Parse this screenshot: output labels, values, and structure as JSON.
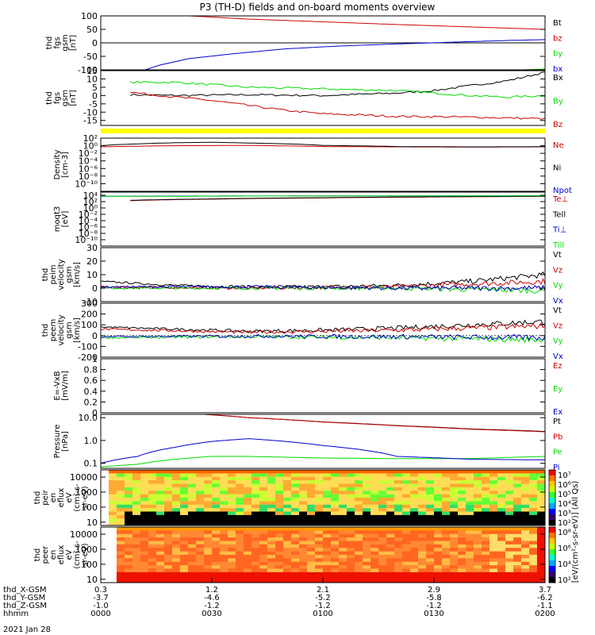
{
  "title": "P3 (TH-D) fields and on-board moments overview",
  "colors": {
    "black": "#000000",
    "red": "#cc0000",
    "green": "#00dd00",
    "blue": "#0000cc",
    "yellow": "#ffff00"
  },
  "chart_data": [
    {
      "type": "line",
      "ylabel": [
        "thd",
        "fgs",
        "gsm",
        "[nT]"
      ],
      "ylim": [
        -100,
        100
      ],
      "yticks": [
        100,
        50,
        0,
        -50,
        -100
      ],
      "series": [
        {
          "name": "Bt",
          "color": "black",
          "x": [
            0,
            60
          ],
          "y": [
            0,
            0
          ]
        },
        {
          "name": "bz",
          "color": "red",
          "x": [
            12,
            20,
            30,
            40,
            50,
            60
          ],
          "y": [
            100,
            88,
            78,
            68,
            59,
            50
          ]
        },
        {
          "name": "by",
          "color": "green",
          "x": [
            35,
            45,
            55,
            60
          ],
          "y": [
            -125,
            -115,
            -102,
            -97
          ]
        },
        {
          "name": "bx",
          "color": "blue",
          "x": [
            6,
            8,
            12,
            18,
            25,
            32,
            40,
            48,
            55,
            60
          ],
          "y": [
            -100,
            -82,
            -58,
            -40,
            -22,
            -12,
            -4,
            3,
            9,
            12
          ]
        }
      ]
    },
    {
      "type": "line",
      "ylabel": [
        "thd",
        "fgs",
        "gsm",
        "[nT]"
      ],
      "ylim": [
        -18,
        15
      ],
      "yticks": [
        15,
        10,
        5,
        0,
        -5,
        -10,
        -15
      ],
      "series": [
        {
          "name": "Bx",
          "color": "black",
          "x": [
            4,
            10,
            20,
            30,
            40,
            45,
            50,
            55,
            60
          ],
          "y": [
            0.5,
            0,
            0.5,
            0,
            1.5,
            3,
            6,
            9,
            14
          ]
        },
        {
          "name": "By",
          "color": "green",
          "x": [
            4,
            10,
            20,
            30,
            40,
            50,
            55,
            60
          ],
          "y": [
            8,
            8,
            5,
            4,
            3,
            0,
            -1,
            0
          ]
        },
        {
          "name": "Bz",
          "color": "red",
          "x": [
            4,
            8,
            15,
            20,
            25,
            30,
            40,
            50,
            60
          ],
          "y": [
            2,
            0,
            -3,
            -6,
            -9,
            -11,
            -12.5,
            -13,
            -14
          ]
        }
      ]
    },
    {
      "type": "line",
      "ylabel": [
        "Density",
        "[cm-3]"
      ],
      "yscale": "log",
      "ylim": [
        1e-12,
        100
      ],
      "yticks": [
        100,
        1,
        0.01,
        0.0001,
        1e-06,
        1e-08,
        1e-10
      ],
      "ytick_labels": [
        "10²",
        "10⁰",
        "10⁻²",
        "10⁻⁴",
        "10⁻⁶",
        "10⁻⁸",
        "10⁻¹⁰"
      ],
      "series": [
        {
          "name": "Ne",
          "color": "red",
          "x": [
            0,
            10,
            20,
            30,
            40,
            50,
            60
          ],
          "y": [
            0.5,
            1,
            1.2,
            0.6,
            0.5,
            0.45,
            0.5
          ]
        },
        {
          "name": "Ni",
          "color": "black",
          "x": [
            0,
            5,
            10,
            15,
            20,
            30,
            40,
            50,
            60
          ],
          "y": [
            1,
            3,
            6,
            8,
            5,
            1.2,
            0.6,
            0.5,
            0.55
          ]
        },
        {
          "name": "Npot",
          "color": "blue",
          "x": [],
          "y": []
        }
      ]
    },
    {
      "type": "line",
      "ylabel": [
        "moqt3",
        "[eV]"
      ],
      "yscale": "log",
      "ylim": [
        1e-12,
        100000.0
      ],
      "yticks": [
        10000.0,
        100,
        1,
        0.01,
        0.0001,
        1e-06,
        1e-08,
        1e-10
      ],
      "ytick_labels": [
        "10⁴",
        "10²",
        "10⁰",
        "10⁻²",
        "10⁻⁴",
        "10⁻⁶",
        "10⁻⁸",
        "10⁻¹⁰"
      ],
      "series": [
        {
          "name": "Te⊥",
          "color": "red",
          "x": [
            4,
            15,
            30,
            45,
            60
          ],
          "y": [
            200,
            600,
            1500,
            3000,
            4500
          ]
        },
        {
          "name": "Tell",
          "color": "black",
          "x": [
            4,
            15,
            30,
            45,
            60
          ],
          "y": [
            250,
            700,
            1700,
            3200,
            5000
          ]
        },
        {
          "name": "Ti⊥",
          "color": "blue",
          "x": [
            0,
            20,
            40,
            60
          ],
          "y": [
            5000,
            6000,
            6500,
            7000
          ]
        },
        {
          "name": "Till",
          "color": "green",
          "x": [
            0,
            20,
            40,
            60
          ],
          "y": [
            4500,
            5500,
            6000,
            6500
          ]
        }
      ]
    },
    {
      "type": "line",
      "ylabel": [
        "thd",
        "peim",
        "velocity",
        "gsm",
        "[km/s]"
      ],
      "ylim": [
        -10,
        30
      ],
      "yticks": [
        30,
        20,
        10,
        0,
        -10
      ],
      "series": [
        {
          "name": "Vt",
          "color": "black",
          "x": [
            0,
            10,
            20,
            30,
            40,
            50,
            60
          ],
          "y": [
            5,
            2,
            1,
            1,
            2,
            5,
            10
          ]
        },
        {
          "name": "Vz",
          "color": "red",
          "x": [
            0,
            20,
            40,
            60
          ],
          "y": [
            1,
            0,
            1,
            5
          ]
        },
        {
          "name": "Vy",
          "color": "green",
          "x": [
            0,
            20,
            40,
            60
          ],
          "y": [
            0,
            0,
            0,
            -2
          ]
        },
        {
          "name": "Vx",
          "color": "blue",
          "x": [
            0,
            20,
            40,
            60
          ],
          "y": [
            1,
            1,
            0,
            0
          ]
        }
      ]
    },
    {
      "type": "line",
      "ylabel": [
        "thd",
        "peem",
        "velocity",
        "gsm",
        "[km/s]"
      ],
      "ylim": [
        -200,
        300
      ],
      "yticks": [
        300,
        200,
        100,
        0,
        -100,
        -200
      ],
      "series": [
        {
          "name": "Vt",
          "color": "black",
          "x": [
            0,
            10,
            20,
            30,
            40,
            50,
            60
          ],
          "y": [
            80,
            60,
            40,
            50,
            70,
            100,
            130
          ]
        },
        {
          "name": "Vz",
          "color": "red",
          "x": [
            0,
            20,
            40,
            60
          ],
          "y": [
            60,
            30,
            50,
            90
          ]
        },
        {
          "name": "Vy",
          "color": "green",
          "x": [
            0,
            20,
            40,
            60
          ],
          "y": [
            -20,
            -10,
            -20,
            -40
          ]
        },
        {
          "name": "Vx",
          "color": "blue",
          "x": [
            0,
            20,
            40,
            60
          ],
          "y": [
            -10,
            -5,
            -10,
            -20
          ]
        }
      ]
    },
    {
      "type": "line",
      "ylabel": [
        "E=-VxB",
        "[mV/m]"
      ],
      "ylim": [
        0,
        1
      ],
      "yticks": [
        1.0,
        0.8,
        0.6,
        0.4,
        0.2,
        0.0
      ],
      "series": [
        {
          "name": "Ez",
          "color": "red",
          "x": [],
          "y": []
        },
        {
          "name": "Ey",
          "color": "green",
          "x": [],
          "y": []
        },
        {
          "name": "Ex",
          "color": "blue",
          "x": [],
          "y": []
        }
      ]
    },
    {
      "type": "line",
      "ylabel": [
        "Pressure",
        "[nPa]"
      ],
      "yscale": "log",
      "ylim": [
        0.06,
        14
      ],
      "yticks": [
        10,
        1,
        0.1
      ],
      "ytick_labels": [
        "10.0",
        "1.0",
        "0.1"
      ],
      "series": [
        {
          "name": "Pt",
          "color": "black",
          "x": [
            14,
            20,
            30,
            40,
            50,
            60
          ],
          "y": [
            14,
            10,
            6.5,
            4.5,
            3.2,
            2.5
          ]
        },
        {
          "name": "Pb",
          "color": "red",
          "x": [
            14,
            20,
            30,
            40,
            50,
            60
          ],
          "y": [
            14,
            10,
            6.4,
            4.4,
            3.1,
            2.4
          ]
        },
        {
          "name": "Pe",
          "color": "green",
          "x": [
            0,
            5,
            10,
            15,
            20,
            30,
            40,
            50,
            60
          ],
          "y": [
            0.07,
            0.09,
            0.15,
            0.2,
            0.2,
            0.17,
            0.16,
            0.16,
            0.2
          ]
        },
        {
          "name": "Pi",
          "color": "blue",
          "x": [
            0,
            5,
            10,
            15,
            20,
            25,
            30,
            40,
            50,
            60
          ],
          "y": [
            0.1,
            0.2,
            0.5,
            0.9,
            1.2,
            0.9,
            0.6,
            0.2,
            0.15,
            0.14
          ]
        }
      ]
    },
    {
      "type": "heatmap",
      "ylabel": [
        "thd",
        "peir",
        "en",
        "eflux",
        "eV",
        "(cm²-s-",
        "sr-eV)"
      ],
      "yscale": "log",
      "ylim": [
        6,
        30000
      ],
      "yticks": [
        10000,
        1000,
        100,
        10
      ],
      "ytick_labels": [
        "10000",
        "1000",
        "100",
        "10"
      ],
      "zlim": [
        100,
        10000000.0
      ],
      "zticks_labels": [
        "10⁷",
        "10⁶",
        "10⁵",
        "10⁴",
        "10³",
        "10²"
      ]
    },
    {
      "type": "heatmap",
      "ylabel": [
        "thd",
        "peer",
        "en",
        "eflux",
        "eV",
        "(cm²-s-",
        "sr-eV)"
      ],
      "yscale": "log",
      "ylim": [
        6,
        30000
      ],
      "yticks": [
        10000,
        1000,
        100,
        10
      ],
      "ytick_labels": [
        "10000",
        "1000",
        "100",
        "10"
      ],
      "zlim": [
        100,
        100000000.0
      ],
      "zticks_labels": [
        "10⁸",
        "10⁶",
        "10⁴",
        "10²"
      ]
    }
  ],
  "colorbar_label": "[eV/(cm²-s-sr-eV)] (All Qs)",
  "xaxis": {
    "xlim": [
      0,
      60
    ],
    "ticks": [
      0,
      15,
      30,
      45,
      60
    ],
    "rows": [
      {
        "label": "thd_X-GSM",
        "values": [
          "0.3",
          "1.2",
          "2.1",
          "2.9",
          "3.7"
        ]
      },
      {
        "label": "thd_Y-GSM",
        "values": [
          "-3.7",
          "-4.6",
          "-5.2",
          "-5.8",
          "-6.2"
        ]
      },
      {
        "label": "thd_Z-GSM",
        "values": [
          "-1.0",
          "-1.2",
          "-1.2",
          "-1.2",
          "-1.1"
        ]
      },
      {
        "label": "hhmm",
        "values": [
          "0000",
          "0030",
          "0100",
          "0130",
          "0200"
        ]
      }
    ],
    "date": "2021 Jan 28"
  }
}
